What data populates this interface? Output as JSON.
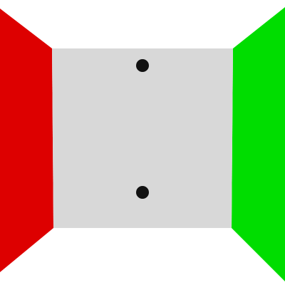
{
  "scene": {
    "type": "room-corridor-view",
    "background_color": "#ffffff",
    "left_wall": {
      "color": "#dd0000"
    },
    "right_wall": {
      "color": "#00dd00"
    },
    "back_wall": {
      "color": "#d8d8d8"
    },
    "ceiling": {
      "color": "#ffffff"
    },
    "floor": {
      "color": "#ffffff"
    },
    "dots": [
      {
        "name": "upper-dot",
        "color": "#111111"
      },
      {
        "name": "lower-dot",
        "color": "#111111"
      }
    ]
  }
}
